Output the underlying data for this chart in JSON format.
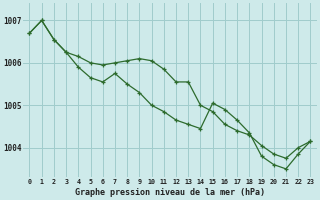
{
  "title": "Graphe pression niveau de la mer (hPa)",
  "background_color": "#ceeaea",
  "grid_color": "#a0cccc",
  "line_color": "#2d6b2d",
  "xlim": [
    -0.5,
    23.5
  ],
  "ylim": [
    1003.3,
    1007.4
  ],
  "yticks": [
    1004,
    1005,
    1006,
    1007
  ],
  "xticks": [
    0,
    1,
    2,
    3,
    4,
    5,
    6,
    7,
    8,
    9,
    10,
    11,
    12,
    13,
    14,
    15,
    16,
    17,
    18,
    19,
    20,
    21,
    22,
    23
  ],
  "series1_x": [
    0,
    1,
    2,
    3,
    4,
    5,
    6,
    7,
    8,
    9,
    10,
    11,
    12,
    13,
    14,
    15,
    16,
    17,
    18,
    19,
    20,
    21,
    22,
    23
  ],
  "series1_y": [
    1006.7,
    1007.0,
    1006.55,
    1006.25,
    1006.15,
    1006.0,
    1005.95,
    1006.0,
    1006.05,
    1006.1,
    1006.05,
    1005.85,
    1005.55,
    1005.55,
    1005.0,
    1004.85,
    1004.55,
    1004.4,
    1004.3,
    1004.05,
    1003.85,
    1003.75,
    1004.0,
    1004.15
  ],
  "series2_x": [
    0,
    1,
    2,
    3,
    4,
    5,
    6,
    7,
    8,
    9,
    10,
    11,
    12,
    13,
    14,
    15,
    16,
    17,
    18,
    19,
    20,
    21,
    22,
    23
  ],
  "series2_y": [
    1006.7,
    1007.0,
    1006.55,
    1006.25,
    1005.9,
    1005.65,
    1005.55,
    1005.75,
    1005.5,
    1005.3,
    1005.0,
    1004.85,
    1004.65,
    1004.55,
    1004.45,
    1005.05,
    1004.9,
    1004.65,
    1004.35,
    1003.8,
    1003.6,
    1003.5,
    1003.85,
    1004.15
  ]
}
